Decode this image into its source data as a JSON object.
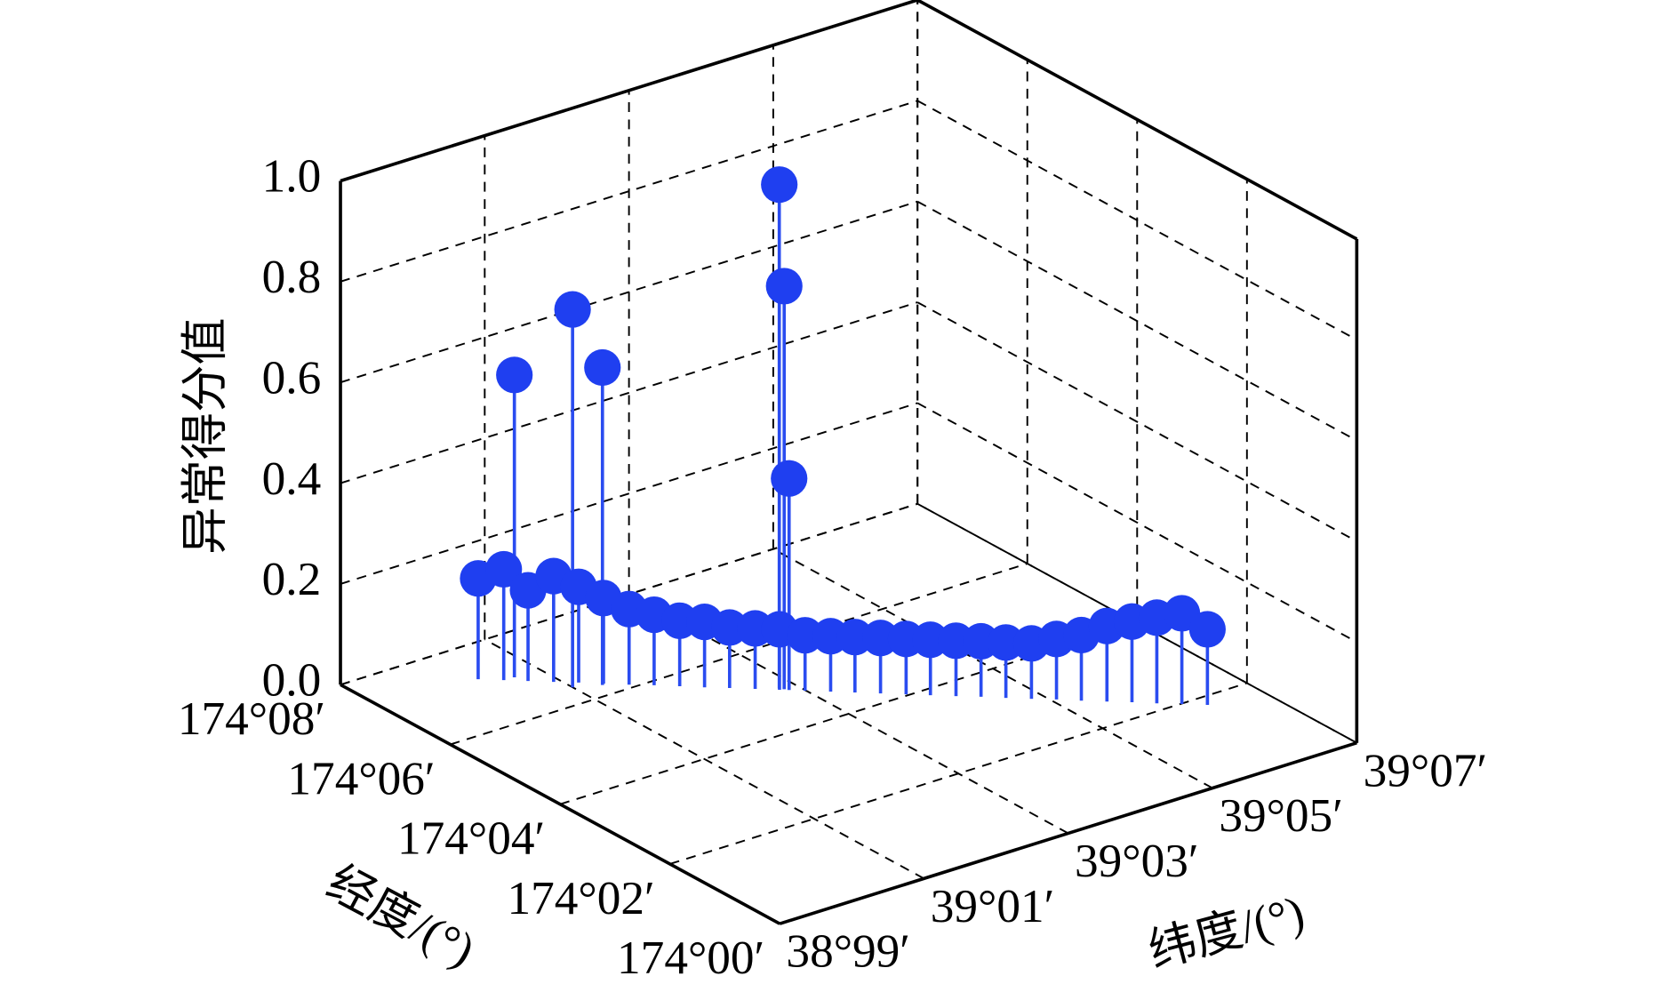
{
  "chart_data": {
    "type": "stem3d",
    "xlabel": "经度/(°)",
    "ylabel": "纬度/(°)",
    "zlabel": "异常得分值",
    "xlim": [
      174.0,
      174.08
    ],
    "ylim": [
      38.99,
      39.07
    ],
    "zlim": [
      0,
      1
    ],
    "xticks": [
      {
        "value": 174.0,
        "label": "174°00′"
      },
      {
        "value": 174.02,
        "label": "174°02′"
      },
      {
        "value": 174.04,
        "label": "174°04′"
      },
      {
        "value": 174.06,
        "label": "174°06′"
      },
      {
        "value": 174.08,
        "label": "174°08′"
      }
    ],
    "yticks": [
      {
        "value": 38.99,
        "label": "38°99′"
      },
      {
        "value": 39.01,
        "label": "39°01′"
      },
      {
        "value": 39.03,
        "label": "39°03′"
      },
      {
        "value": 39.05,
        "label": "39°05′"
      },
      {
        "value": 39.07,
        "label": "39°07′"
      }
    ],
    "zticks": [
      {
        "value": 0,
        "label": "0.0"
      },
      0.2,
      0.4,
      0.6,
      0.8,
      {
        "value": 1,
        "label": "1.0"
      }
    ],
    "grid": true,
    "color": "#1f3ff0",
    "stem_color": "#2a4cf0",
    "x": [
      174.072,
      174.0701,
      174.0683,
      174.0664,
      174.0646,
      174.0627,
      174.0608,
      174.059,
      174.0571,
      174.0552,
      174.0534,
      174.0515,
      174.0497,
      174.0478,
      174.0459,
      174.0441,
      174.0422,
      174.0403,
      174.0385,
      174.0366,
      174.0348,
      174.0329,
      174.031,
      174.0292,
      174.0273,
      174.0254,
      174.0236,
      174.0217,
      174.0199,
      174.018,
      174.07,
      174.064,
      174.0625,
      174.05,
      174.0495,
      174.049
    ],
    "y": [
      39.003,
      39.0051,
      39.0071,
      39.0092,
      39.0113,
      39.0133,
      39.0154,
      39.0175,
      39.0196,
      39.0216,
      39.0237,
      39.0258,
      39.0278,
      39.0299,
      39.032,
      39.034,
      39.0361,
      39.0382,
      39.0402,
      39.0423,
      39.0444,
      39.0464,
      39.0485,
      39.0506,
      39.0526,
      39.0547,
      39.0568,
      39.0588,
      39.0609,
      39.063,
      39.0065,
      39.01,
      39.013,
      39.028,
      39.0283,
      39.0286
    ],
    "z": [
      0.2,
      0.22,
      0.18,
      0.21,
      0.19,
      0.17,
      0.15,
      0.14,
      0.13,
      0.13,
      0.12,
      0.12,
      0.12,
      0.11,
      0.11,
      0.11,
      0.11,
      0.11,
      0.11,
      0.11,
      0.11,
      0.11,
      0.11,
      0.12,
      0.13,
      0.15,
      0.16,
      0.17,
      0.18,
      0.15,
      0.6,
      0.75,
      0.63,
      1.0,
      0.8,
      0.42
    ]
  }
}
